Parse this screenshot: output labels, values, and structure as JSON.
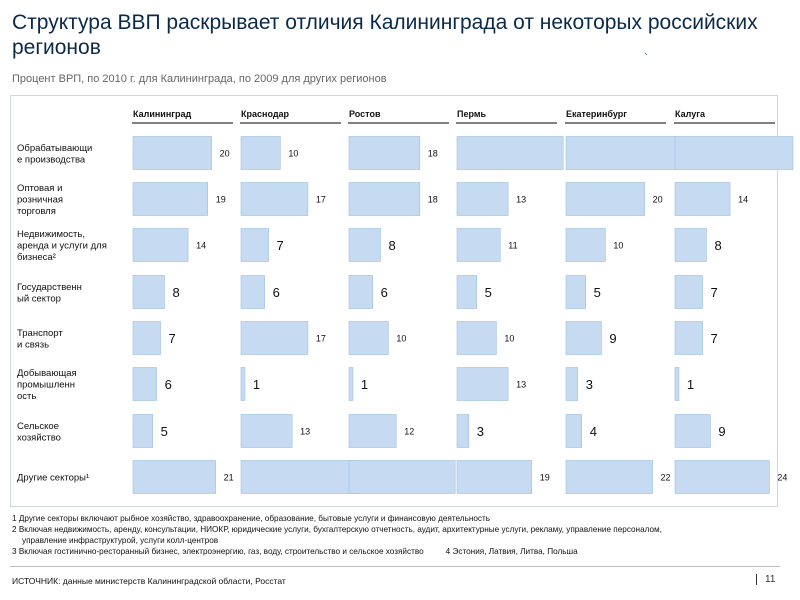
{
  "title": "Структура ВВП раскрывает отличия Калининграда от некоторых российских регионов",
  "subtitle": "Процент ВРП, по 2010 г. для Калининграда, по 2009 для других регионов",
  "decor_mark": "`",
  "chart_data": {
    "type": "bar",
    "orientation": "horizontal-small-multiples",
    "columns": [
      "Калининград",
      "Краснодар",
      "Ростов",
      "Пермь",
      "Екатеринбург",
      "Калуга"
    ],
    "categories": [
      [
        "Обрабатывающи",
        "е производства"
      ],
      [
        "Оптовая и",
        "розничная",
        "торговля"
      ],
      [
        "Недвижимость,",
        "аренда и услуги для",
        "бизнеса²"
      ],
      [
        "Государственн",
        "ый сектор"
      ],
      [
        "Транспорт",
        "и связь"
      ],
      [
        "Добывающая",
        "промышленн",
        "ость"
      ],
      [
        "Сельское",
        "хозяйство"
      ],
      [
        "Другие секторы¹"
      ]
    ],
    "series": [
      {
        "name": "Калининград",
        "values": [
          20,
          19,
          14,
          8,
          7,
          6,
          5,
          21
        ]
      },
      {
        "name": "Краснодар",
        "values": [
          10,
          17,
          7,
          6,
          17,
          1,
          13,
          30
        ]
      },
      {
        "name": "Ростов",
        "values": [
          18,
          18,
          8,
          6,
          10,
          1,
          12,
          27
        ]
      },
      {
        "name": "Пермь",
        "values": [
          27,
          13,
          11,
          5,
          10,
          13,
          3,
          19
        ]
      },
      {
        "name": "Екатеринбург",
        "values": [
          28,
          20,
          10,
          5,
          9,
          3,
          4,
          22
        ]
      },
      {
        "name": "Калуга",
        "values": [
          30,
          14,
          8,
          7,
          7,
          1,
          9,
          24
        ]
      }
    ],
    "xlim": [
      0,
      30
    ],
    "unit": "%",
    "colors": {
      "bar": "#c6dbf1",
      "bar_border": "#9cbfe3",
      "header_rule": "#000000"
    }
  },
  "footnotes": {
    "n1": "1 Другие секторы включают рыбное хозяйство, здравоохранение, образование, бытовые услуги и финансовую деятельность",
    "n2": "2 Включая недвижимость, аренду, консультации, НИОКР, юридические услуги, бухгалтерскую отчетность, аудит, архитектурные услуги, рекламу, управление персоналом,",
    "n2b": "управление инфраструктурой, услуги колл-центров",
    "n3": "3  Включая гостинично-ресторанный бизнес, электроэнергию, газ, воду, строительство и сельское хозяйство",
    "n4": "4 Эстония, Латвия, Литва, Польша"
  },
  "source": "ИСТОЧНИК: данные министерств Калининградской области, Росстат",
  "page_number": "11"
}
